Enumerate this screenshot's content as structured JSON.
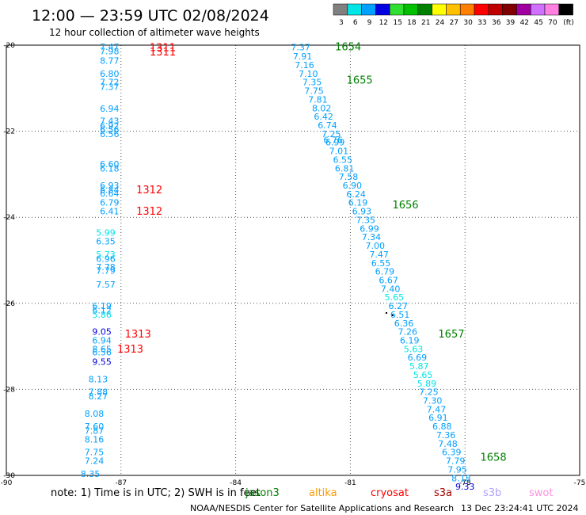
{
  "header": {
    "title": "12:00 — 23:59 UTC 02/08/2024",
    "subtitle": "12 hour collection of altimeter wave heights"
  },
  "legend": {
    "unit": "(ft)",
    "bins": [
      {
        "label": "3",
        "color": "#808080"
      },
      {
        "label": "6",
        "color": "#00e5e5"
      },
      {
        "label": "9",
        "color": "#00a0ff"
      },
      {
        "label": "12",
        "color": "#0000e0"
      },
      {
        "label": "15",
        "color": "#30e030"
      },
      {
        "label": "18",
        "color": "#00c000"
      },
      {
        "label": "21",
        "color": "#008000"
      },
      {
        "label": "24",
        "color": "#ffff00"
      },
      {
        "label": "27",
        "color": "#ffc000"
      },
      {
        "label": "30",
        "color": "#ff8000"
      },
      {
        "label": "33",
        "color": "#ff0000"
      },
      {
        "label": "36",
        "color": "#c00000"
      },
      {
        "label": "39",
        "color": "#800000"
      },
      {
        "label": "42",
        "color": "#a000a0"
      },
      {
        "label": "45",
        "color": "#d070ff"
      },
      {
        "label": "70",
        "color": "#ff80e0"
      },
      {
        "label": "",
        "color": "#000000"
      }
    ]
  },
  "note": "note:  1) Time is in UTC; 2) SWH is in feet",
  "satellites": [
    {
      "name": "jason3",
      "color": "#008000"
    },
    {
      "name": "altika",
      "color": "#ff9900"
    },
    {
      "name": "cryosat",
      "color": "#ff0000"
    },
    {
      "name": "s3a",
      "color": "#a00000"
    },
    {
      "name": "s3b",
      "color": "#b0a0ff"
    },
    {
      "name": "swot",
      "color": "#ff90e0"
    }
  ],
  "footer": {
    "credit": "NOAA/NESDIS Center for Satellite Applications and Research",
    "timestamp": "13 Dec 23:24:41 UTC 2024"
  },
  "chart_data": {
    "type": "scatter",
    "title": "12:00 — 23:59 UTC 02/08/2024",
    "subtitle": "12 hour collection of altimeter wave heights",
    "xlim": [
      -90,
      -75
    ],
    "ylim": [
      -30,
      -20
    ],
    "xticks": [
      {
        "value": -90,
        "label": "-90"
      },
      {
        "value": -87,
        "label": "-87"
      },
      {
        "value": -84,
        "label": "-84"
      },
      {
        "value": -81,
        "label": "-81"
      },
      {
        "value": -78,
        "label": "-78"
      },
      {
        "value": -75,
        "label": "-75"
      }
    ],
    "yticks": [
      {
        "value": -20,
        "label": "-20"
      },
      {
        "value": -22,
        "label": "-22"
      },
      {
        "value": -24,
        "label": "-24"
      },
      {
        "value": -26,
        "label": "-26"
      },
      {
        "value": -28,
        "label": "-28"
      },
      {
        "value": -30,
        "label": "-30"
      }
    ],
    "grid": "dotted",
    "pass_labels": [
      {
        "text": "1311",
        "lon": -86.25,
        "lat": -20.05,
        "color": "#ff0000"
      },
      {
        "text": "1311",
        "lon": -86.25,
        "lat": -20.15,
        "color": "#ff0000"
      },
      {
        "text": "1312",
        "lon": -86.6,
        "lat": -23.35,
        "color": "#ff0000"
      },
      {
        "text": "1312",
        "lon": -86.6,
        "lat": -23.85,
        "color": "#ff0000"
      },
      {
        "text": "1313",
        "lon": -86.9,
        "lat": -26.7,
        "color": "#ff0000"
      },
      {
        "text": "1313",
        "lon": -87.1,
        "lat": -27.05,
        "color": "#ff0000"
      },
      {
        "text": "1654",
        "lon": -81.4,
        "lat": -20.03,
        "color": "#008000"
      },
      {
        "text": "1655",
        "lon": -81.1,
        "lat": -20.8,
        "color": "#008000"
      },
      {
        "text": "1656",
        "lon": -79.9,
        "lat": -23.7,
        "color": "#008000"
      },
      {
        "text": "1657",
        "lon": -78.7,
        "lat": -26.7,
        "color": "#008000"
      },
      {
        "text": "1658",
        "lon": -77.6,
        "lat": -29.57,
        "color": "#008000"
      }
    ],
    "observations": [
      {
        "lon": -87.3,
        "lat": -20.04,
        "value": "7.47"
      },
      {
        "lon": -87.3,
        "lat": -20.14,
        "value": "7.98"
      },
      {
        "lon": -87.3,
        "lat": -20.36,
        "value": "8.77"
      },
      {
        "lon": -87.3,
        "lat": -20.66,
        "value": "6.80"
      },
      {
        "lon": -87.3,
        "lat": -20.86,
        "value": "7.72"
      },
      {
        "lon": -87.3,
        "lat": -20.97,
        "value": "7.37"
      },
      {
        "lon": -87.3,
        "lat": -21.47,
        "value": "6.94"
      },
      {
        "lon": -87.3,
        "lat": -21.76,
        "value": "7.43"
      },
      {
        "lon": -87.3,
        "lat": -21.87,
        "value": "6.92"
      },
      {
        "lon": -87.3,
        "lat": -21.96,
        "value": "6.56"
      },
      {
        "lon": -87.3,
        "lat": -22.06,
        "value": "6.56"
      },
      {
        "lon": -87.3,
        "lat": -22.76,
        "value": "6.60"
      },
      {
        "lon": -87.3,
        "lat": -22.86,
        "value": "6.18"
      },
      {
        "lon": -87.3,
        "lat": -23.26,
        "value": "6.93"
      },
      {
        "lon": -87.3,
        "lat": -23.36,
        "value": "6.84"
      },
      {
        "lon": -87.3,
        "lat": -23.44,
        "value": "6.64"
      },
      {
        "lon": -87.3,
        "lat": -23.66,
        "value": "6.79"
      },
      {
        "lon": -87.3,
        "lat": -23.86,
        "value": "6.41"
      },
      {
        "lon": -87.4,
        "lat": -24.36,
        "value": "5.99"
      },
      {
        "lon": -87.4,
        "lat": -24.56,
        "value": "6.35"
      },
      {
        "lon": -87.4,
        "lat": -24.86,
        "value": "5.73"
      },
      {
        "lon": -87.4,
        "lat": -24.96,
        "value": "6.96"
      },
      {
        "lon": -87.4,
        "lat": -25.16,
        "value": "7.78"
      },
      {
        "lon": -87.4,
        "lat": -25.24,
        "value": "7.79"
      },
      {
        "lon": -87.4,
        "lat": -25.56,
        "value": "7.57"
      },
      {
        "lon": -87.5,
        "lat": -26.06,
        "value": "6.19"
      },
      {
        "lon": -87.5,
        "lat": -26.16,
        "value": "6.12"
      },
      {
        "lon": -87.5,
        "lat": -26.26,
        "value": "5.86"
      },
      {
        "lon": -87.5,
        "lat": -26.66,
        "value": "9.05"
      },
      {
        "lon": -87.5,
        "lat": -26.86,
        "value": "6.94"
      },
      {
        "lon": -87.5,
        "lat": -27.06,
        "value": "8.65"
      },
      {
        "lon": -87.5,
        "lat": -27.14,
        "value": "6.56"
      },
      {
        "lon": -87.5,
        "lat": -27.36,
        "value": "9.55"
      },
      {
        "lon": -87.6,
        "lat": -27.76,
        "value": "8.13"
      },
      {
        "lon": -87.6,
        "lat": -28.06,
        "value": "7.88"
      },
      {
        "lon": -87.6,
        "lat": -28.16,
        "value": "8.27"
      },
      {
        "lon": -87.7,
        "lat": -28.56,
        "value": "8.08"
      },
      {
        "lon": -87.7,
        "lat": -28.86,
        "value": "7.60"
      },
      {
        "lon": -87.7,
        "lat": -28.96,
        "value": "7.87"
      },
      {
        "lon": -87.7,
        "lat": -29.16,
        "value": "8.16"
      },
      {
        "lon": -87.7,
        "lat": -29.46,
        "value": "7.75"
      },
      {
        "lon": -87.7,
        "lat": -29.66,
        "value": "7.24"
      },
      {
        "lon": -87.8,
        "lat": -29.96,
        "value": "8.35"
      },
      {
        "lon": -82.3,
        "lat": -20.05,
        "value": "7.37"
      },
      {
        "lon": -82.25,
        "lat": -20.26,
        "value": "7.91"
      },
      {
        "lon": -82.2,
        "lat": -20.46,
        "value": "7.16"
      },
      {
        "lon": -82.1,
        "lat": -20.66,
        "value": "7.10"
      },
      {
        "lon": -82.0,
        "lat": -20.86,
        "value": "7.35"
      },
      {
        "lon": -81.95,
        "lat": -21.06,
        "value": "7.75"
      },
      {
        "lon": -81.85,
        "lat": -21.26,
        "value": "7.81"
      },
      {
        "lon": -81.75,
        "lat": -21.46,
        "value": "8.02"
      },
      {
        "lon": -81.7,
        "lat": -21.66,
        "value": "6.42"
      },
      {
        "lon": -81.6,
        "lat": -21.86,
        "value": "6.74"
      },
      {
        "lon": -81.5,
        "lat": -22.06,
        "value": "7.25"
      },
      {
        "lon": -81.45,
        "lat": -22.2,
        "value": "6.76"
      },
      {
        "lon": -81.4,
        "lat": -22.26,
        "value": "6.99"
      },
      {
        "lon": -81.3,
        "lat": -22.46,
        "value": "7.01"
      },
      {
        "lon": -81.2,
        "lat": -22.66,
        "value": "6.55"
      },
      {
        "lon": -81.15,
        "lat": -22.86,
        "value": "6.81"
      },
      {
        "lon": -81.05,
        "lat": -23.06,
        "value": "7.58"
      },
      {
        "lon": -80.95,
        "lat": -23.26,
        "value": "6.90"
      },
      {
        "lon": -80.85,
        "lat": -23.46,
        "value": "6.24"
      },
      {
        "lon": -80.8,
        "lat": -23.66,
        "value": "6.19"
      },
      {
        "lon": -80.7,
        "lat": -23.86,
        "value": "6.93"
      },
      {
        "lon": -80.6,
        "lat": -24.06,
        "value": "7.35"
      },
      {
        "lon": -80.5,
        "lat": -24.26,
        "value": "6.99"
      },
      {
        "lon": -80.45,
        "lat": -24.46,
        "value": "7.34"
      },
      {
        "lon": -80.35,
        "lat": -24.66,
        "value": "7.00"
      },
      {
        "lon": -80.25,
        "lat": -24.86,
        "value": "7.47"
      },
      {
        "lon": -80.2,
        "lat": -25.06,
        "value": "6.55"
      },
      {
        "lon": -80.1,
        "lat": -25.26,
        "value": "6.79"
      },
      {
        "lon": -80.0,
        "lat": -25.46,
        "value": "6.67"
      },
      {
        "lon": -79.95,
        "lat": -25.66,
        "value": "7.40"
      },
      {
        "lon": -79.85,
        "lat": -25.86,
        "value": "5.65"
      },
      {
        "lon": -79.75,
        "lat": -26.06,
        "value": "6.27"
      },
      {
        "lon": -79.7,
        "lat": -26.26,
        "value": "6.51"
      },
      {
        "lon": -79.6,
        "lat": -26.46,
        "value": "6.36"
      },
      {
        "lon": -79.5,
        "lat": -26.66,
        "value": "7.26"
      },
      {
        "lon": -79.45,
        "lat": -26.86,
        "value": "6.19"
      },
      {
        "lon": -79.35,
        "lat": -27.06,
        "value": "5.63"
      },
      {
        "lon": -79.25,
        "lat": -27.26,
        "value": "6.69"
      },
      {
        "lon": -79.2,
        "lat": -27.46,
        "value": "5.87"
      },
      {
        "lon": -79.1,
        "lat": -27.66,
        "value": "5.65"
      },
      {
        "lon": -79.0,
        "lat": -27.86,
        "value": "5.89"
      },
      {
        "lon": -78.95,
        "lat": -28.06,
        "value": "7.25"
      },
      {
        "lon": -78.85,
        "lat": -28.26,
        "value": "7.30"
      },
      {
        "lon": -78.75,
        "lat": -28.46,
        "value": "7.47"
      },
      {
        "lon": -78.7,
        "lat": -28.66,
        "value": "6.91"
      },
      {
        "lon": -78.6,
        "lat": -28.86,
        "value": "6.88"
      },
      {
        "lon": -78.5,
        "lat": -29.06,
        "value": "7.36"
      },
      {
        "lon": -78.45,
        "lat": -29.26,
        "value": "7.48"
      },
      {
        "lon": -78.35,
        "lat": -29.46,
        "value": "6.39"
      },
      {
        "lon": -78.25,
        "lat": -29.66,
        "value": "7.79"
      },
      {
        "lon": -78.2,
        "lat": -29.86,
        "value": "7.95"
      },
      {
        "lon": -78.1,
        "lat": -30.06,
        "value": "8.18"
      },
      {
        "lon": -78.0,
        "lat": -30.26,
        "value": "9.33"
      }
    ]
  }
}
